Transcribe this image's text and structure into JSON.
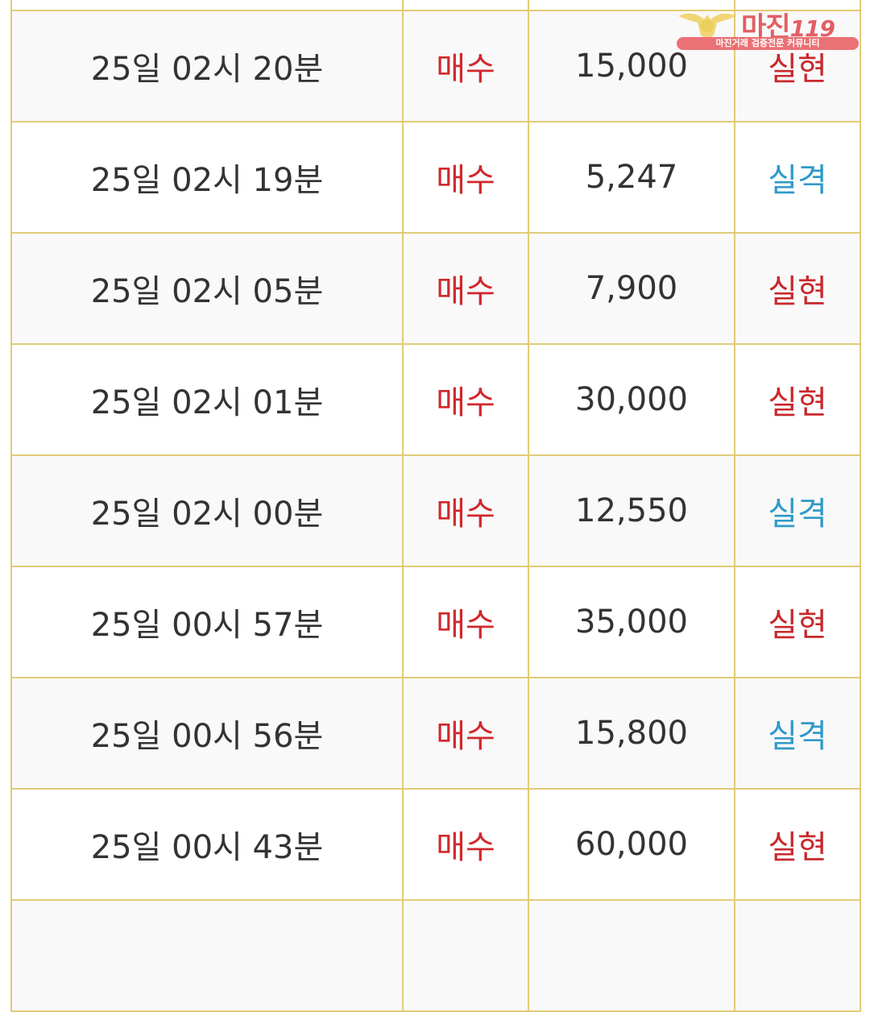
{
  "logo": {
    "brand": "마진",
    "number": "119",
    "tagline": "마진거래 검증전문 커뮤니티"
  },
  "colors": {
    "border": "#e2cb78",
    "buy": "#d0282c",
    "success": "#c8282c",
    "fail": "#2f9ac9"
  },
  "rows": [
    {
      "time": "",
      "side": "",
      "amount": "",
      "result": "",
      "status": ""
    },
    {
      "time": "25일 02시 20분",
      "side": "매수",
      "amount": "15,000",
      "result": "실현",
      "status": "win"
    },
    {
      "time": "25일 02시 19분",
      "side": "매수",
      "amount": "5,247",
      "result": "실격",
      "status": "lose"
    },
    {
      "time": "25일 02시 05분",
      "side": "매수",
      "amount": "7,900",
      "result": "실현",
      "status": "win"
    },
    {
      "time": "25일 02시 01분",
      "side": "매수",
      "amount": "30,000",
      "result": "실현",
      "status": "win"
    },
    {
      "time": "25일 02시 00분",
      "side": "매수",
      "amount": "12,550",
      "result": "실격",
      "status": "lose"
    },
    {
      "time": "25일 00시 57분",
      "side": "매수",
      "amount": "35,000",
      "result": "실현",
      "status": "win"
    },
    {
      "time": "25일 00시 56분",
      "side": "매수",
      "amount": "15,800",
      "result": "실격",
      "status": "lose"
    },
    {
      "time": "25일 00시 43분",
      "side": "매수",
      "amount": "60,000",
      "result": "실현",
      "status": "win"
    },
    {
      "time": "",
      "side": "",
      "amount": "",
      "result": "",
      "status": ""
    }
  ]
}
